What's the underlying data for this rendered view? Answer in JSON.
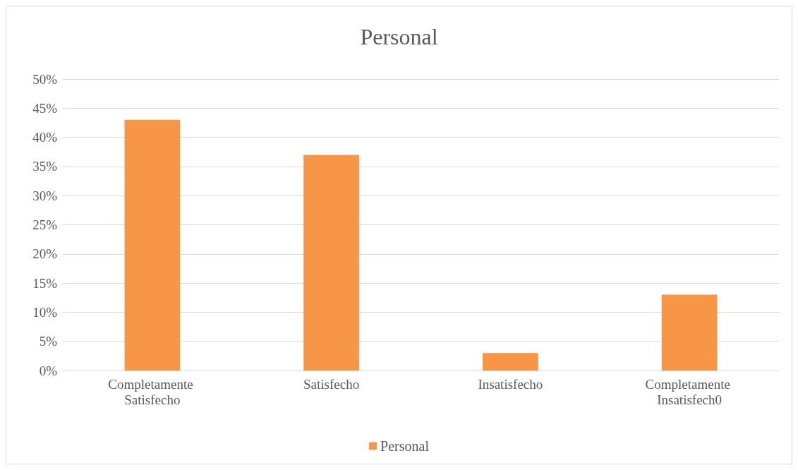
{
  "chart_data": {
    "type": "bar",
    "title": "Personal",
    "categories": [
      "Completamente Satisfecho",
      "Satisfecho",
      "Insatisfecho",
      "Completamente Insatisfech0"
    ],
    "series": [
      {
        "name": "Personal",
        "color": "#f79646",
        "values": [
          43,
          37,
          3,
          13
        ]
      }
    ],
    "ylim": [
      0,
      50
    ],
    "yticks": [
      {
        "value": 0,
        "label": "0%"
      },
      {
        "value": 5,
        "label": "5%"
      },
      {
        "value": 10,
        "label": "10%"
      },
      {
        "value": 15,
        "label": "15%"
      },
      {
        "value": 20,
        "label": "20%"
      },
      {
        "value": 25,
        "label": "25%"
      },
      {
        "value": 30,
        "label": "30%"
      },
      {
        "value": 35,
        "label": "35%"
      },
      {
        "value": 40,
        "label": "40%"
      },
      {
        "value": 45,
        "label": "45%"
      },
      {
        "value": 50,
        "label": "50%"
      }
    ],
    "grid": "y",
    "legend": "bottom"
  }
}
